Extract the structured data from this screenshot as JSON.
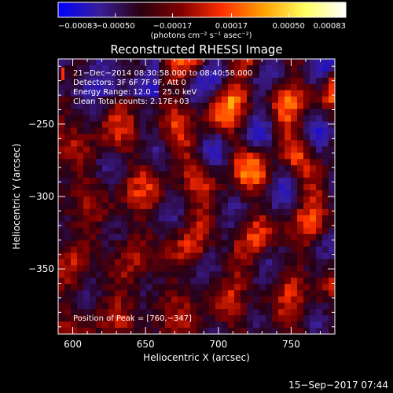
{
  "chart_data": {
    "type": "heatmap",
    "title": "Reconstructed RHESSI Image",
    "xlabel": "Heliocentric X (arcsec)",
    "ylabel": "Heliocentric Y (arcsec)",
    "xlim": [
      590,
      780
    ],
    "ylim": [
      -395,
      -205
    ],
    "x_ticks": [
      600,
      650,
      700,
      750
    ],
    "x_tick_labels": [
      "600",
      "650",
      "700",
      "750"
    ],
    "y_ticks": [
      -250,
      -300,
      -350
    ],
    "y_tick_labels": [
      "−250",
      "−300",
      "−350"
    ],
    "colorbar": {
      "min": -0.00083,
      "max": 0.00083,
      "ticks": [
        -0.00083,
        -0.0005,
        -0.00017,
        0.00017,
        0.0005,
        0.00083
      ],
      "tick_labels": [
        "−0.00083",
        "−0.00050",
        "−0.00017",
        "0.00017",
        "0.00050",
        "0.00083"
      ],
      "unit_label": "(photons cm⁻² s⁻¹ asec⁻²)",
      "colors": [
        "#0000ff",
        "#3a1e9a",
        "#2a0010",
        "#800000",
        "#ff3000",
        "#ffa000",
        "#ffff60",
        "#ffffff"
      ]
    },
    "annotations": [
      "21−Dec−2014 08:30:58.000 to 08:40:58.000",
      "Detectors: 3F 6F 7F 9F, Att 0",
      "Energy Range: 12.0 − 25.0 keV",
      "Clean     Total counts: 2.17E+03"
    ],
    "peak_label": "Position of Peak = [760,−347]",
    "peak": [
      760,
      -347
    ]
  },
  "footer": {
    "timestamp": "15−Sep−2017 07:44"
  }
}
